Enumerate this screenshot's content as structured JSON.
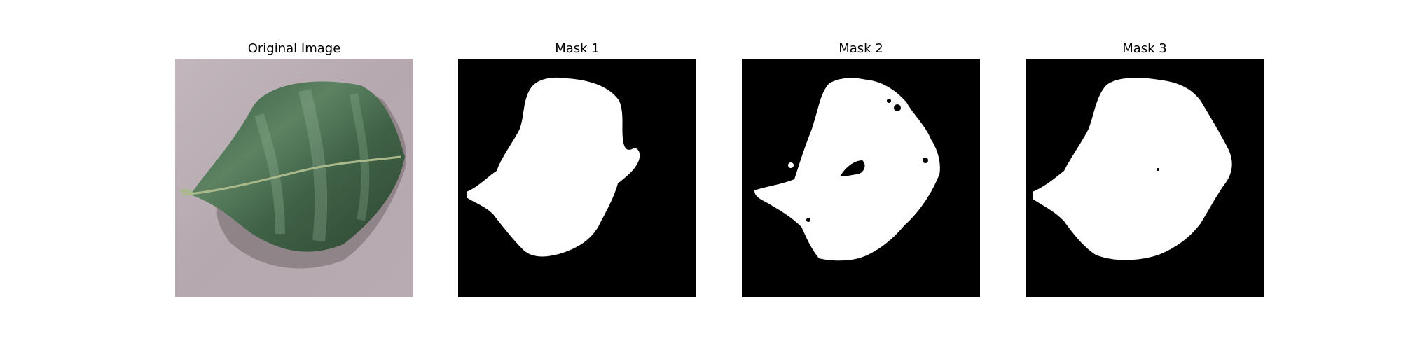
{
  "figure": {
    "panels": [
      {
        "title": "Original Image",
        "kind": "photo",
        "subject": "green-leaf-on-gray-surface"
      },
      {
        "title": "Mask 1",
        "kind": "binary-mask"
      },
      {
        "title": "Mask 2",
        "kind": "binary-mask"
      },
      {
        "title": "Mask 3",
        "kind": "binary-mask"
      }
    ]
  },
  "colors": {
    "background": "#ffffff",
    "mask_background": "#000000",
    "mask_foreground": "#ffffff",
    "surface": "#b9adb3",
    "leaf_dark": "#2f4a34",
    "leaf_mid": "#4f7354",
    "leaf_light": "#86a98a",
    "stem": "#9cae7a"
  }
}
